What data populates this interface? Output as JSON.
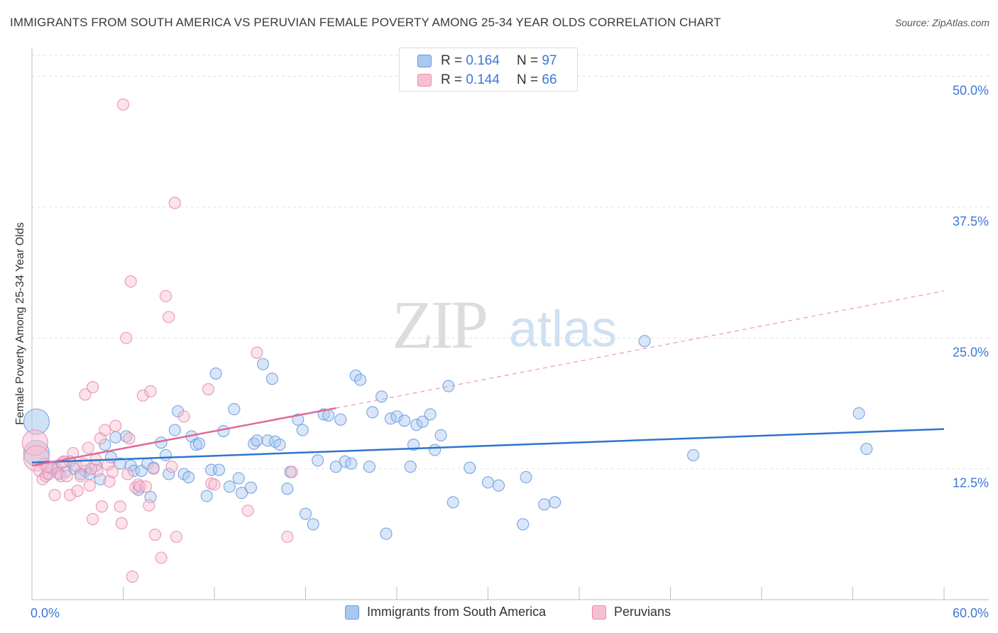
{
  "title": "IMMIGRANTS FROM SOUTH AMERICA VS PERUVIAN FEMALE POVERTY AMONG 25-34 YEAR OLDS CORRELATION CHART",
  "source": "Source: ZipAtlas.com",
  "watermark": {
    "zip": "ZIP",
    "atlas": "atlas"
  },
  "legend_stats": [
    {
      "r_label": "R = ",
      "r_value": "0.164",
      "n_label": "N = ",
      "n_value": "97",
      "color": "#a8c8f0",
      "border": "#6a9be0"
    },
    {
      "r_label": "R = ",
      "r_value": "0.144",
      "n_label": "N = ",
      "n_value": "66",
      "color": "#f7c0d2",
      "border": "#ea8aaa"
    }
  ],
  "bottom_legend": [
    {
      "label": "Immigrants from South America",
      "color": "#a8c8f0",
      "border": "#6a9be0"
    },
    {
      "label": "Peruvians",
      "color": "#f7c0d2",
      "border": "#ea8aaa"
    }
  ],
  "chart_data": {
    "type": "scatter",
    "title": "IMMIGRANTS FROM SOUTH AMERICA VS PERUVIAN FEMALE POVERTY AMONG 25-34 YEAR OLDS CORRELATION CHART",
    "xlabel": "",
    "ylabel": "Female Poverty Among 25-34 Year Olds",
    "xlim": [
      0,
      60
    ],
    "ylim": [
      0,
      52
    ],
    "x_tick_labels": [
      {
        "value": 0,
        "label": "0.0%"
      },
      {
        "value": 60,
        "label": "60.0%"
      }
    ],
    "y_tick_labels": [
      {
        "value": 12.5,
        "label": "12.5%"
      },
      {
        "value": 25,
        "label": "25.0%"
      },
      {
        "value": 37.5,
        "label": "37.5%"
      },
      {
        "value": 50,
        "label": "50.0%"
      }
    ],
    "grid": "horizontal dashed",
    "legend_placement": "top-center",
    "series": [
      {
        "name": "Immigrants from South America",
        "color": "#6a9be0",
        "fill": "#a8c8f0",
        "trend": {
          "x": [
            0,
            60
          ],
          "y": [
            13.1,
            16.3
          ],
          "style": "solid",
          "color": "#2f74d0"
        },
        "points": [
          [
            0.3,
            17.0,
            "big"
          ],
          [
            0.3,
            14.0,
            "big"
          ],
          [
            0.8,
            13.0
          ],
          [
            1.0,
            12.0
          ],
          [
            1.3,
            12.5
          ],
          [
            1.6,
            12.5
          ],
          [
            1.8,
            12.0
          ],
          [
            2.2,
            12.2
          ],
          [
            2.5,
            13.2
          ],
          [
            2.8,
            12.5
          ],
          [
            3.2,
            12.0
          ],
          [
            3.5,
            12.3
          ],
          [
            3.8,
            12.0
          ],
          [
            4.2,
            12.8
          ],
          [
            4.5,
            11.5
          ],
          [
            4.8,
            14.8
          ],
          [
            5.2,
            13.6
          ],
          [
            5.5,
            15.5
          ],
          [
            5.8,
            13.0
          ],
          [
            6.2,
            15.6
          ],
          [
            6.5,
            12.8
          ],
          [
            6.7,
            12.3
          ],
          [
            7.0,
            10.5
          ],
          [
            7.2,
            12.3
          ],
          [
            7.6,
            13.0
          ],
          [
            7.8,
            9.8
          ],
          [
            8.0,
            12.6
          ],
          [
            8.5,
            15.0
          ],
          [
            8.8,
            13.8
          ],
          [
            9.0,
            12.0
          ],
          [
            9.4,
            16.2
          ],
          [
            9.6,
            18.0
          ],
          [
            10.0,
            12.0
          ],
          [
            10.3,
            11.7
          ],
          [
            10.5,
            15.6
          ],
          [
            10.8,
            14.8
          ],
          [
            11.0,
            14.9
          ],
          [
            11.5,
            9.9
          ],
          [
            11.8,
            12.4
          ],
          [
            12.1,
            21.6
          ],
          [
            12.3,
            12.4
          ],
          [
            12.6,
            16.1
          ],
          [
            13.0,
            10.8
          ],
          [
            13.3,
            18.2
          ],
          [
            13.6,
            11.6
          ],
          [
            13.8,
            10.2
          ],
          [
            14.4,
            10.7
          ],
          [
            14.6,
            14.9
          ],
          [
            14.8,
            15.2
          ],
          [
            15.2,
            22.5
          ],
          [
            15.5,
            15.2
          ],
          [
            15.8,
            21.1
          ],
          [
            16.0,
            15.1
          ],
          [
            16.3,
            14.8
          ],
          [
            16.8,
            10.6
          ],
          [
            17.0,
            12.2
          ],
          [
            17.5,
            17.2
          ],
          [
            17.8,
            16.2
          ],
          [
            18.0,
            8.2
          ],
          [
            18.5,
            7.2
          ],
          [
            18.8,
            13.3
          ],
          [
            19.2,
            17.7
          ],
          [
            19.5,
            17.6
          ],
          [
            20.0,
            12.7
          ],
          [
            20.3,
            17.2
          ],
          [
            20.6,
            13.2
          ],
          [
            21.0,
            13.0
          ],
          [
            21.3,
            21.4
          ],
          [
            21.6,
            21.0
          ],
          [
            22.2,
            12.7
          ],
          [
            22.4,
            17.9
          ],
          [
            23.0,
            19.4
          ],
          [
            23.3,
            6.3
          ],
          [
            23.6,
            17.3
          ],
          [
            24.0,
            17.5
          ],
          [
            24.5,
            17.1
          ],
          [
            24.9,
            12.7
          ],
          [
            25.1,
            14.8
          ],
          [
            25.3,
            16.7
          ],
          [
            25.7,
            17.0
          ],
          [
            26.2,
            17.7
          ],
          [
            26.5,
            14.3
          ],
          [
            26.9,
            15.7
          ],
          [
            27.4,
            20.4
          ],
          [
            27.7,
            9.3
          ],
          [
            28.8,
            12.6
          ],
          [
            30.0,
            11.2
          ],
          [
            30.7,
            10.9
          ],
          [
            32.3,
            7.2
          ],
          [
            32.5,
            11.7
          ],
          [
            33.7,
            9.1
          ],
          [
            34.4,
            9.3
          ],
          [
            40.3,
            24.7
          ],
          [
            43.5,
            13.8
          ],
          [
            54.9,
            14.4
          ],
          [
            54.4,
            17.8
          ]
        ]
      },
      {
        "name": "Peruvians",
        "color": "#ea8aaa",
        "fill": "#f7c0d2",
        "trend": {
          "x": [
            0,
            20
          ],
          "y": [
            12.8,
            18.3
          ],
          "style": "solid",
          "color": "#e0689a"
        },
        "trend_extension": {
          "x": [
            20,
            60
          ],
          "y": [
            18.3,
            29.5
          ],
          "style": "dashed",
          "color": "#e89ab8"
        },
        "points": [
          [
            0.2,
            15.0,
            "big"
          ],
          [
            0.3,
            13.5,
            "big"
          ],
          [
            0.5,
            12.3
          ],
          [
            0.7,
            11.5
          ],
          [
            0.9,
            11.8
          ],
          [
            1.1,
            12.0
          ],
          [
            1.3,
            12.6
          ],
          [
            1.5,
            10.0
          ],
          [
            1.7,
            12.1
          ],
          [
            1.9,
            11.8
          ],
          [
            2.1,
            13.2
          ],
          [
            2.3,
            11.8
          ],
          [
            2.5,
            10.0
          ],
          [
            2.7,
            14.0
          ],
          [
            2.9,
            12.8
          ],
          [
            3.0,
            10.4
          ],
          [
            3.2,
            11.8
          ],
          [
            3.4,
            13.0
          ],
          [
            3.5,
            19.6
          ],
          [
            3.7,
            14.5
          ],
          [
            3.8,
            10.9
          ],
          [
            4.0,
            7.7
          ],
          [
            4.0,
            20.3
          ],
          [
            4.3,
            12.3
          ],
          [
            4.5,
            15.4
          ],
          [
            4.6,
            8.9
          ],
          [
            4.8,
            16.2
          ],
          [
            5.0,
            12.9
          ],
          [
            5.1,
            11.3
          ],
          [
            5.3,
            12.2
          ],
          [
            5.5,
            16.6
          ],
          [
            5.8,
            8.9
          ],
          [
            5.9,
            7.3
          ],
          [
            6.0,
            47.3
          ],
          [
            6.2,
            25.0
          ],
          [
            6.4,
            15.4
          ],
          [
            6.5,
            30.4
          ],
          [
            6.6,
            2.2
          ],
          [
            6.8,
            10.7
          ],
          [
            7.0,
            11.0
          ],
          [
            7.1,
            10.8
          ],
          [
            7.3,
            19.5
          ],
          [
            7.5,
            10.8
          ],
          [
            7.7,
            9.0
          ],
          [
            7.8,
            19.9
          ],
          [
            8.0,
            12.5
          ],
          [
            8.1,
            6.2
          ],
          [
            8.5,
            4.0
          ],
          [
            8.8,
            29.0
          ],
          [
            9.0,
            27.0
          ],
          [
            9.4,
            37.9
          ],
          [
            9.5,
            6.0
          ],
          [
            10.0,
            17.5
          ],
          [
            11.6,
            20.1
          ],
          [
            11.8,
            11.1
          ],
          [
            12.0,
            11.0
          ],
          [
            14.2,
            8.5
          ],
          [
            14.8,
            23.6
          ],
          [
            16.8,
            6.0
          ],
          [
            17.1,
            12.2
          ],
          [
            3.9,
            12.5
          ],
          [
            2.0,
            13.1
          ],
          [
            1.0,
            12.7
          ],
          [
            4.2,
            13.4
          ],
          [
            6.3,
            12.0
          ],
          [
            9.2,
            12.7
          ]
        ]
      }
    ]
  }
}
